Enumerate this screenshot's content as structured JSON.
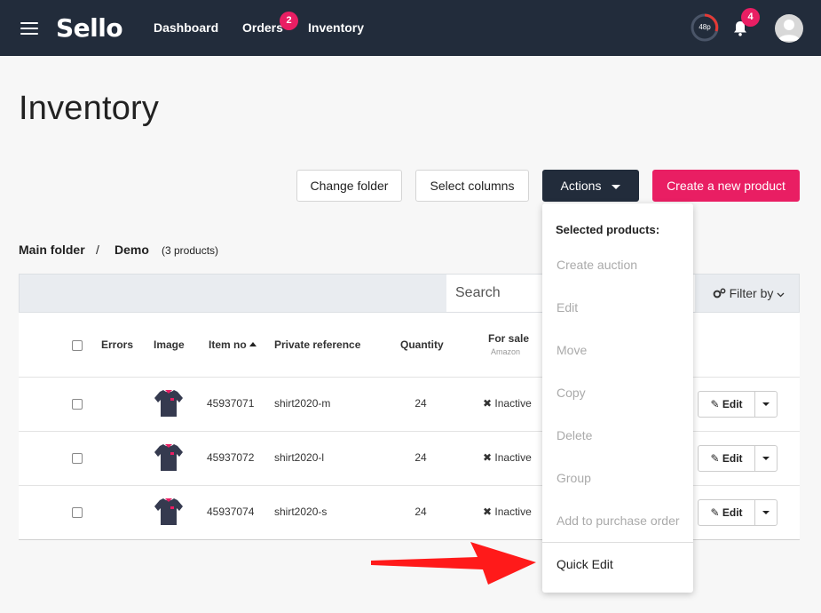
{
  "app": {
    "name": "Sello"
  },
  "nav": {
    "dashboard": "Dashboard",
    "orders": "Orders",
    "orders_badge": "2",
    "inventory": "Inventory"
  },
  "topbar": {
    "speed_label": "48p",
    "notifications_badge": "4"
  },
  "page": {
    "title": "Inventory"
  },
  "toolbar": {
    "change_folder": "Change folder",
    "select_columns": "Select columns",
    "actions": "Actions",
    "create_product": "Create a new product"
  },
  "breadcrumb": {
    "root": "Main folder",
    "separator": "/",
    "current": "Demo",
    "count": "(3 products)"
  },
  "search": {
    "placeholder": "Search",
    "filter_label": "Filter by"
  },
  "table": {
    "headers": {
      "errors": "Errors",
      "image": "Image",
      "item_no": "Item no",
      "private_reference": "Private reference",
      "quantity": "Quantity",
      "for_sale": "For sale",
      "for_sale_sub": "Amazon"
    },
    "rows": [
      {
        "item_no": "45937071",
        "private_reference": "shirt2020-m",
        "quantity": "24",
        "status": "Inactive",
        "edit": "Edit"
      },
      {
        "item_no": "45937072",
        "private_reference": "shirt2020-l",
        "quantity": "24",
        "status": "Inactive",
        "edit": "Edit"
      },
      {
        "item_no": "45937074",
        "private_reference": "shirt2020-s",
        "quantity": "24",
        "status": "Inactive",
        "edit": "Edit"
      }
    ]
  },
  "actions_menu": {
    "header": "Selected products:",
    "items": [
      {
        "label": "Create auction"
      },
      {
        "label": "Edit"
      },
      {
        "label": "Move"
      },
      {
        "label": "Copy"
      },
      {
        "label": "Delete"
      },
      {
        "label": "Group"
      },
      {
        "label": "Add to purchase order"
      }
    ],
    "quick_edit": "Quick Edit"
  },
  "colors": {
    "topbar": "#222c3b",
    "accent": "#e91e63",
    "annotation_arrow": "#ff1a1a"
  },
  "icons": {
    "menu": "hamburger-icon",
    "bell": "bell-icon",
    "filter": "gears-icon",
    "edit": "edit-icon",
    "close": "x-icon",
    "sort": "sort-asc-icon"
  }
}
